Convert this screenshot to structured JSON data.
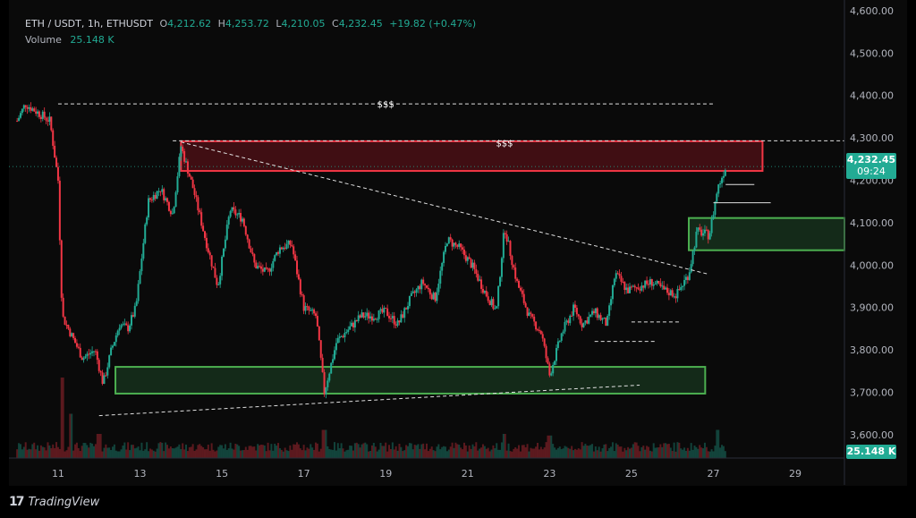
{
  "legend": {
    "symbol": "ETH / USDT, 1h, ETHUSDT",
    "open_label": "O",
    "open": "4,212.62",
    "high_label": "H",
    "high": "4,253.72",
    "low_label": "L",
    "low": "4,210.05",
    "close_label": "C",
    "close": "4,232.45",
    "change": "+19.82 (+0.47%)",
    "volume_label": "Volume",
    "volume": "25.148 K"
  },
  "price_badge": {
    "price": "4,232.45",
    "countdown": "09:24"
  },
  "volume_badge": "25.148 K",
  "footer": {
    "logo": "17",
    "brand": "TradingView"
  },
  "annotations": {
    "liquidity_top": "$$$",
    "liquidity_zone": "$$$"
  },
  "colors": {
    "up": "#22ab94",
    "down": "#f23645",
    "bg": "#0a0a0a",
    "supply_fill": "#4a0f15",
    "supply_border": "#f23645",
    "demand_fill": "#16301c",
    "demand_border": "#4caf50"
  },
  "chart_data": {
    "type": "candlestick",
    "title": "ETH / USDT, 1h, ETHUSDT",
    "x_tick_labels": [
      "11",
      "13",
      "15",
      "17",
      "19",
      "21",
      "23",
      "25",
      "27",
      "29"
    ],
    "y_tick_labels": [
      "3,600.00",
      "3,700.00",
      "3,800.00",
      "3,900.00",
      "4,000.00",
      "4,100.00",
      "4,200.00",
      "4,300.00",
      "4,400.00",
      "4,500.00",
      "4,600.00"
    ],
    "ylim": [
      3545,
      4625
    ],
    "xlim": [
      9.8,
      30.2
    ],
    "grid": false,
    "close_path": [
      [
        10.0,
        4340
      ],
      [
        10.2,
        4380
      ],
      [
        10.5,
        4360
      ],
      [
        10.8,
        4340
      ],
      [
        11.0,
        4200
      ],
      [
        11.1,
        3880
      ],
      [
        11.3,
        3840
      ],
      [
        11.6,
        3780
      ],
      [
        11.9,
        3800
      ],
      [
        12.1,
        3720
      ],
      [
        12.3,
        3800
      ],
      [
        12.5,
        3860
      ],
      [
        12.7,
        3850
      ],
      [
        12.9,
        3900
      ],
      [
        13.2,
        4150
      ],
      [
        13.5,
        4180
      ],
      [
        13.8,
        4120
      ],
      [
        14.0,
        4280
      ],
      [
        14.3,
        4180
      ],
      [
        14.6,
        4060
      ],
      [
        14.9,
        3950
      ],
      [
        15.2,
        4130
      ],
      [
        15.5,
        4110
      ],
      [
        15.8,
        4000
      ],
      [
        16.1,
        3980
      ],
      [
        16.4,
        4040
      ],
      [
        16.7,
        4050
      ],
      [
        17.0,
        3900
      ],
      [
        17.3,
        3880
      ],
      [
        17.5,
        3700
      ],
      [
        17.8,
        3820
      ],
      [
        18.1,
        3850
      ],
      [
        18.4,
        3880
      ],
      [
        18.7,
        3880
      ],
      [
        19.0,
        3890
      ],
      [
        19.3,
        3860
      ],
      [
        19.6,
        3920
      ],
      [
        19.9,
        3960
      ],
      [
        20.2,
        3920
      ],
      [
        20.5,
        4060
      ],
      [
        20.8,
        4040
      ],
      [
        21.1,
        4000
      ],
      [
        21.4,
        3940
      ],
      [
        21.7,
        3890
      ],
      [
        21.9,
        4090
      ],
      [
        22.2,
        3960
      ],
      [
        22.5,
        3880
      ],
      [
        22.8,
        3840
      ],
      [
        23.0,
        3740
      ],
      [
        23.3,
        3840
      ],
      [
        23.6,
        3900
      ],
      [
        23.8,
        3860
      ],
      [
        24.1,
        3890
      ],
      [
        24.4,
        3860
      ],
      [
        24.6,
        3980
      ],
      [
        24.9,
        3940
      ],
      [
        25.2,
        3950
      ],
      [
        25.5,
        3960
      ],
      [
        25.8,
        3940
      ],
      [
        26.1,
        3930
      ],
      [
        26.4,
        3980
      ],
      [
        26.6,
        4080
      ],
      [
        26.9,
        4070
      ],
      [
        27.1,
        4180
      ],
      [
        27.3,
        4232
      ]
    ],
    "volume_spikes": [
      [
        11.1,
        1.0
      ],
      [
        11.3,
        0.55
      ],
      [
        12.0,
        0.3
      ],
      [
        17.5,
        0.35
      ],
      [
        21.9,
        0.3
      ],
      [
        23.0,
        0.28
      ],
      [
        27.1,
        0.35
      ]
    ],
    "zones": [
      {
        "name": "supply",
        "x0": 14.0,
        "x1": 28.2,
        "y0": 4222,
        "y1": 4292
      },
      {
        "name": "demand-right",
        "x0": 26.4,
        "x1": 30.2,
        "y0": 4035,
        "y1": 4111
      },
      {
        "name": "demand-bottom",
        "x0": 12.4,
        "x1": 26.8,
        "y0": 3697,
        "y1": 3760
      }
    ],
    "trendlines": [
      {
        "style": "dashed",
        "x0": 14.0,
        "y0": 4290,
        "x1": 26.9,
        "y1": 3978
      },
      {
        "style": "dashed",
        "x0": 12.0,
        "y0": 3645,
        "x1": 25.2,
        "y1": 3717
      }
    ],
    "levels": [
      {
        "style": "dashed",
        "x0": 11.0,
        "x1": 27.0,
        "y": 4380,
        "label": "$$$"
      },
      {
        "style": "dashed",
        "x0": 13.8,
        "x1": 30.2,
        "y": 4293
      },
      {
        "style": "solid",
        "x0": 27.3,
        "x1": 28.0,
        "y": 4190
      },
      {
        "style": "solid",
        "x0": 27.0,
        "x1": 28.4,
        "y": 4147
      },
      {
        "style": "dashed",
        "x0": 25.0,
        "x1": 26.2,
        "y": 3866
      },
      {
        "style": "dashed",
        "x0": 24.1,
        "x1": 25.6,
        "y": 3820
      }
    ],
    "last_price": 4232.45
  }
}
